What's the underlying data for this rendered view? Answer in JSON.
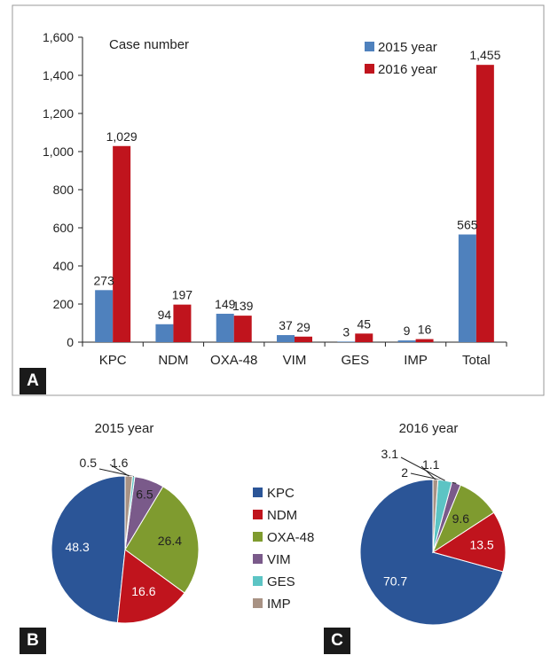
{
  "panels": {
    "a": "A",
    "b": "B",
    "c": "C"
  },
  "pie_legend": [
    {
      "label": "KPC",
      "color": "#2b5597"
    },
    {
      "label": "NDM",
      "color": "#c0141d"
    },
    {
      "label": "OXA-48",
      "color": "#7f9b2f"
    },
    {
      "label": "VIM",
      "color": "#7a5a8a"
    },
    {
      "label": "GES",
      "color": "#5cc4c4"
    },
    {
      "label": "IMP",
      "color": "#a89284"
    }
  ],
  "chart_data": [
    {
      "type": "bar",
      "title": "Case number",
      "categories": [
        "KPC",
        "NDM",
        "OXA-48",
        "VIM",
        "GES",
        "IMP",
        "Total"
      ],
      "series": [
        {
          "name": "2015 year",
          "color": "#4f81bd",
          "values": [
            273,
            94,
            149,
            37,
            3,
            9,
            565
          ]
        },
        {
          "name": "2016 year",
          "color": "#c0141d",
          "values": [
            1029,
            197,
            139,
            29,
            45,
            16,
            1455
          ]
        }
      ],
      "data_labels": [
        [
          "273",
          "94",
          "149",
          "37",
          "3",
          "9",
          "565"
        ],
        [
          "1,029",
          "197",
          "139",
          "29",
          "45",
          "16",
          "1,455"
        ]
      ],
      "ylim": [
        0,
        1600
      ],
      "yticks": [
        0,
        200,
        400,
        600,
        800,
        1000,
        1200,
        1400,
        1600
      ],
      "ytick_labels": [
        "0",
        "200",
        "400",
        "600",
        "800",
        "1,000",
        "1,200",
        "1,400",
        "1,600"
      ],
      "legend_position": "top-right",
      "grid": false
    },
    {
      "type": "pie",
      "title": "2015 year",
      "categories": [
        "KPC",
        "NDM",
        "OXA-48",
        "VIM",
        "GES",
        "IMP"
      ],
      "values": [
        48.3,
        16.6,
        26.4,
        6.5,
        0.5,
        1.6
      ],
      "labels": [
        "48.3",
        "16.6",
        "26.4",
        "6.5",
        "0.5",
        "1.6"
      ]
    },
    {
      "type": "pie",
      "title": "2016 year",
      "categories": [
        "KPC",
        "NDM",
        "OXA-48",
        "VIM",
        "GES",
        "IMP"
      ],
      "values": [
        70.7,
        13.5,
        9.6,
        2,
        3.1,
        1.1
      ],
      "labels": [
        "70.7",
        "13.5",
        "9.6",
        "2",
        "3.1",
        "1.1"
      ]
    }
  ]
}
